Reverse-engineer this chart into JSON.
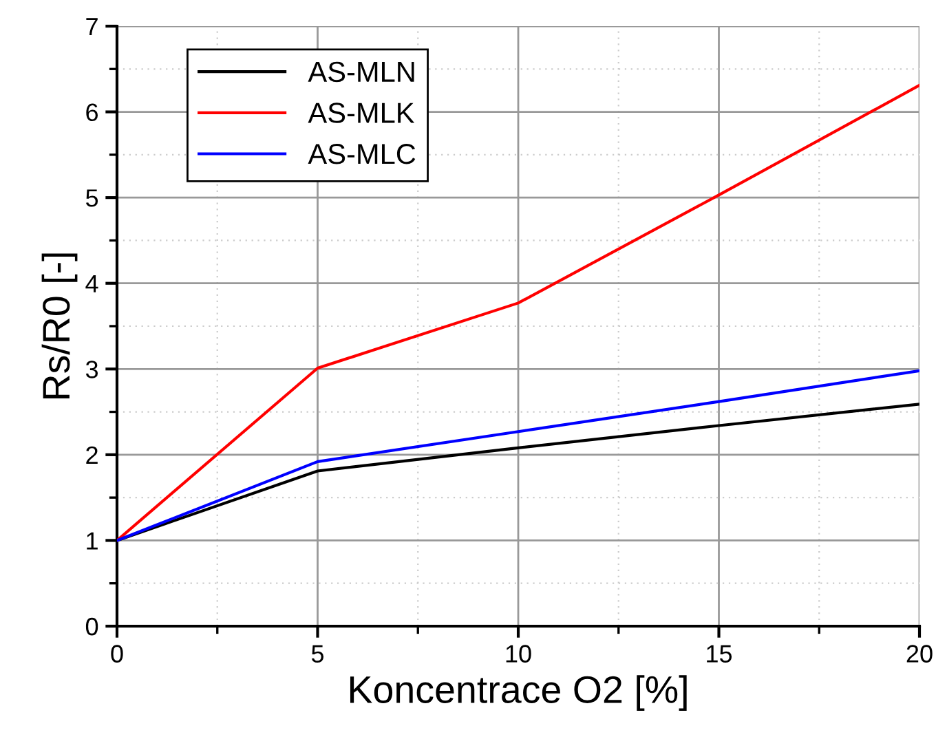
{
  "chart_data": {
    "type": "line",
    "xlabel": "Koncentrace O2 [%]",
    "ylabel": "Rs/R0 [-]",
    "x": [
      0,
      5,
      10,
      15,
      20
    ],
    "series": [
      {
        "name": "AS-MLN",
        "color": "#000000",
        "values": [
          1,
          1.81,
          2.08,
          2.34,
          2.59
        ]
      },
      {
        "name": "AS-MLK",
        "color": "#ff0000",
        "values": [
          1,
          3.01,
          3.77,
          5.03,
          6.31
        ]
      },
      {
        "name": "AS-MLC",
        "color": "#0000ff",
        "values": [
          1,
          1.92,
          2.27,
          2.62,
          2.98
        ]
      }
    ],
    "xlim": [
      0,
      20
    ],
    "xticks": [
      0,
      5,
      10,
      15,
      20
    ],
    "ylim": [
      0,
      7
    ],
    "yticks": [
      0,
      1,
      2,
      3,
      4,
      5,
      6,
      7
    ],
    "grid": true,
    "legend": "top left",
    "marker": "none",
    "line_style": "solid"
  }
}
